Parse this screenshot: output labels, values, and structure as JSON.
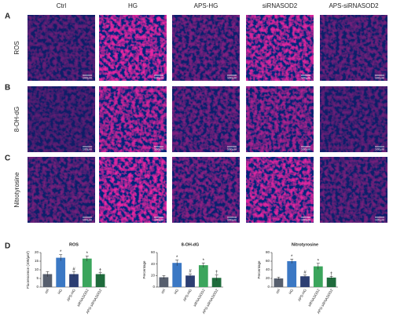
{
  "columns": [
    "Ctrl",
    "HG",
    "APS-HG",
    "siRNASOD2",
    "APS-siRNASOD2"
  ],
  "rows": [
    {
      "letter": "A",
      "label": "ROS"
    },
    {
      "letter": "B",
      "label": "8-OH-dG"
    },
    {
      "letter": "C",
      "label": "Nitrotyrosine"
    }
  ],
  "scale_bar": "100μm",
  "panel_d_letter": "D",
  "chart_data": [
    {
      "type": "bar",
      "title": "ROS",
      "y_label": "Fluorescence (100/μm²)",
      "categories": [
        "ctrl",
        "HG",
        "APS-HG",
        "siRNASOD2",
        "APS-siRNASOD2"
      ],
      "values": [
        7.5,
        17,
        7.5,
        16.5,
        7.5
      ],
      "errors": [
        1.5,
        1.8,
        1.5,
        1.5,
        0.8
      ],
      "markers": [
        null,
        "*",
        "#",
        "*",
        "†"
      ],
      "colors": [
        "#575f6e",
        "#3b78c4",
        "#2c3e72",
        "#3ba55c",
        "#1f6b3c"
      ],
      "ylim": [
        0,
        20
      ],
      "yticks": [
        0,
        5,
        10,
        15,
        20
      ]
    },
    {
      "type": "bar",
      "title": "8-OH-dG",
      "y_label": "Percentage",
      "categories": [
        "ctrl",
        "HG",
        "APS-HG",
        "siRNASOD2",
        "APS-siRNASOD2"
      ],
      "values": [
        17,
        42,
        20,
        38,
        16
      ],
      "errors": [
        3,
        5,
        3,
        4,
        5
      ],
      "markers": [
        null,
        "*",
        "#",
        "*",
        "†"
      ],
      "colors": [
        "#575f6e",
        "#3b78c4",
        "#2c3e72",
        "#3ba55c",
        "#1f6b3c"
      ],
      "ylim": [
        0,
        60
      ],
      "yticks": [
        0,
        20,
        40,
        60
      ]
    },
    {
      "type": "bar",
      "title": "Nitrotyrosine",
      "y_label": "Percentage",
      "categories": [
        "ctrl",
        "HG",
        "APS-HG",
        "siRNASOD2",
        "APS-siRNASOD2"
      ],
      "values": [
        20,
        60,
        25,
        48,
        22
      ],
      "errors": [
        3,
        5,
        3,
        7,
        3
      ],
      "markers": [
        null,
        "*",
        "#",
        "*",
        "†"
      ],
      "colors": [
        "#575f6e",
        "#3b78c4",
        "#2c3e72",
        "#3ba55c",
        "#1f6b3c"
      ],
      "ylim": [
        0,
        80
      ],
      "yticks": [
        0,
        20,
        40,
        60,
        80
      ]
    }
  ]
}
